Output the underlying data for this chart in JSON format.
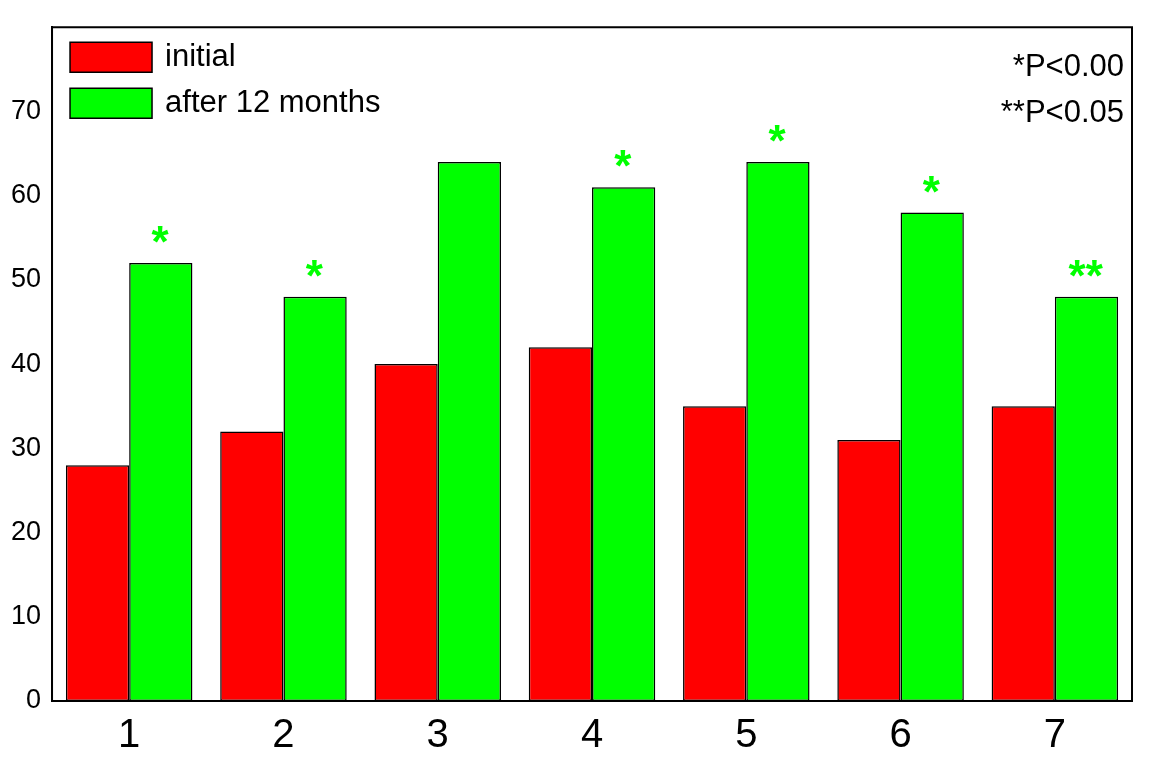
{
  "chart_data": {
    "type": "bar",
    "categories": [
      "1",
      "2",
      "3",
      "4",
      "5",
      "6",
      "7"
    ],
    "series": [
      {
        "name": "initial",
        "color": "#ff0000",
        "values": [
          28,
          32,
          40,
          42,
          35,
          31,
          35
        ]
      },
      {
        "name": "after 12 months",
        "color": "#00ff00",
        "values": [
          52,
          48,
          64,
          61,
          64,
          58,
          48
        ]
      }
    ],
    "ylim": [
      0,
      80
    ],
    "yticks": [
      0,
      10,
      20,
      30,
      40,
      50,
      60,
      70
    ],
    "grid": false,
    "legend": "top left",
    "annotations": [
      {
        "text": "*",
        "x": "1",
        "y": 52
      },
      {
        "text": "*",
        "x": "2",
        "y": 48
      },
      {
        "text": "*",
        "x": "4",
        "y": 61
      },
      {
        "text": "*",
        "x": "5",
        "y": 64
      },
      {
        "text": "*",
        "x": "6",
        "y": 58
      },
      {
        "text": "**",
        "x": "7",
        "y": 48
      },
      "*P<0.00",
      "**P<0.05"
    ]
  }
}
